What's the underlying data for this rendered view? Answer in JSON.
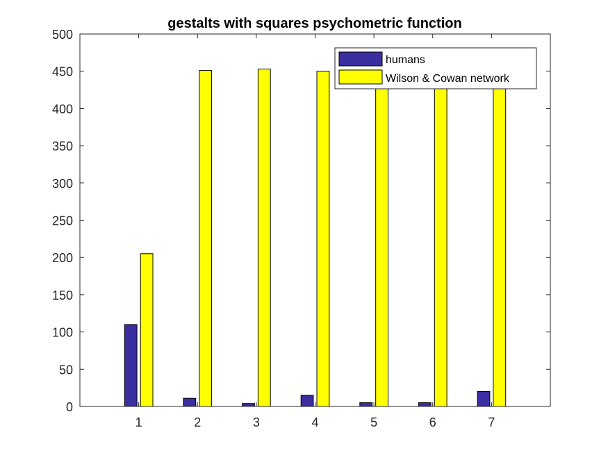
{
  "chart_data": {
    "type": "bar",
    "title": "gestalts with squares psychometric function",
    "xlabel": "",
    "ylabel": "",
    "categories": [
      "1",
      "2",
      "3",
      "4",
      "5",
      "6",
      "7"
    ],
    "series": [
      {
        "name": "humans",
        "color": "#3a2ea0",
        "values": [
          110,
          11,
          4,
          15,
          5,
          5,
          20
        ]
      },
      {
        "name": "Wilson & Cowan network",
        "color": "#ffff00",
        "values": [
          205,
          451,
          453,
          450,
          450,
          450,
          450
        ]
      }
    ],
    "xlim": [
      0,
      8
    ],
    "ylim": [
      0,
      500
    ],
    "yticks": [
      0,
      50,
      100,
      150,
      200,
      250,
      300,
      350,
      400,
      450,
      500
    ],
    "grid": false,
    "legend_position": "top-right"
  }
}
